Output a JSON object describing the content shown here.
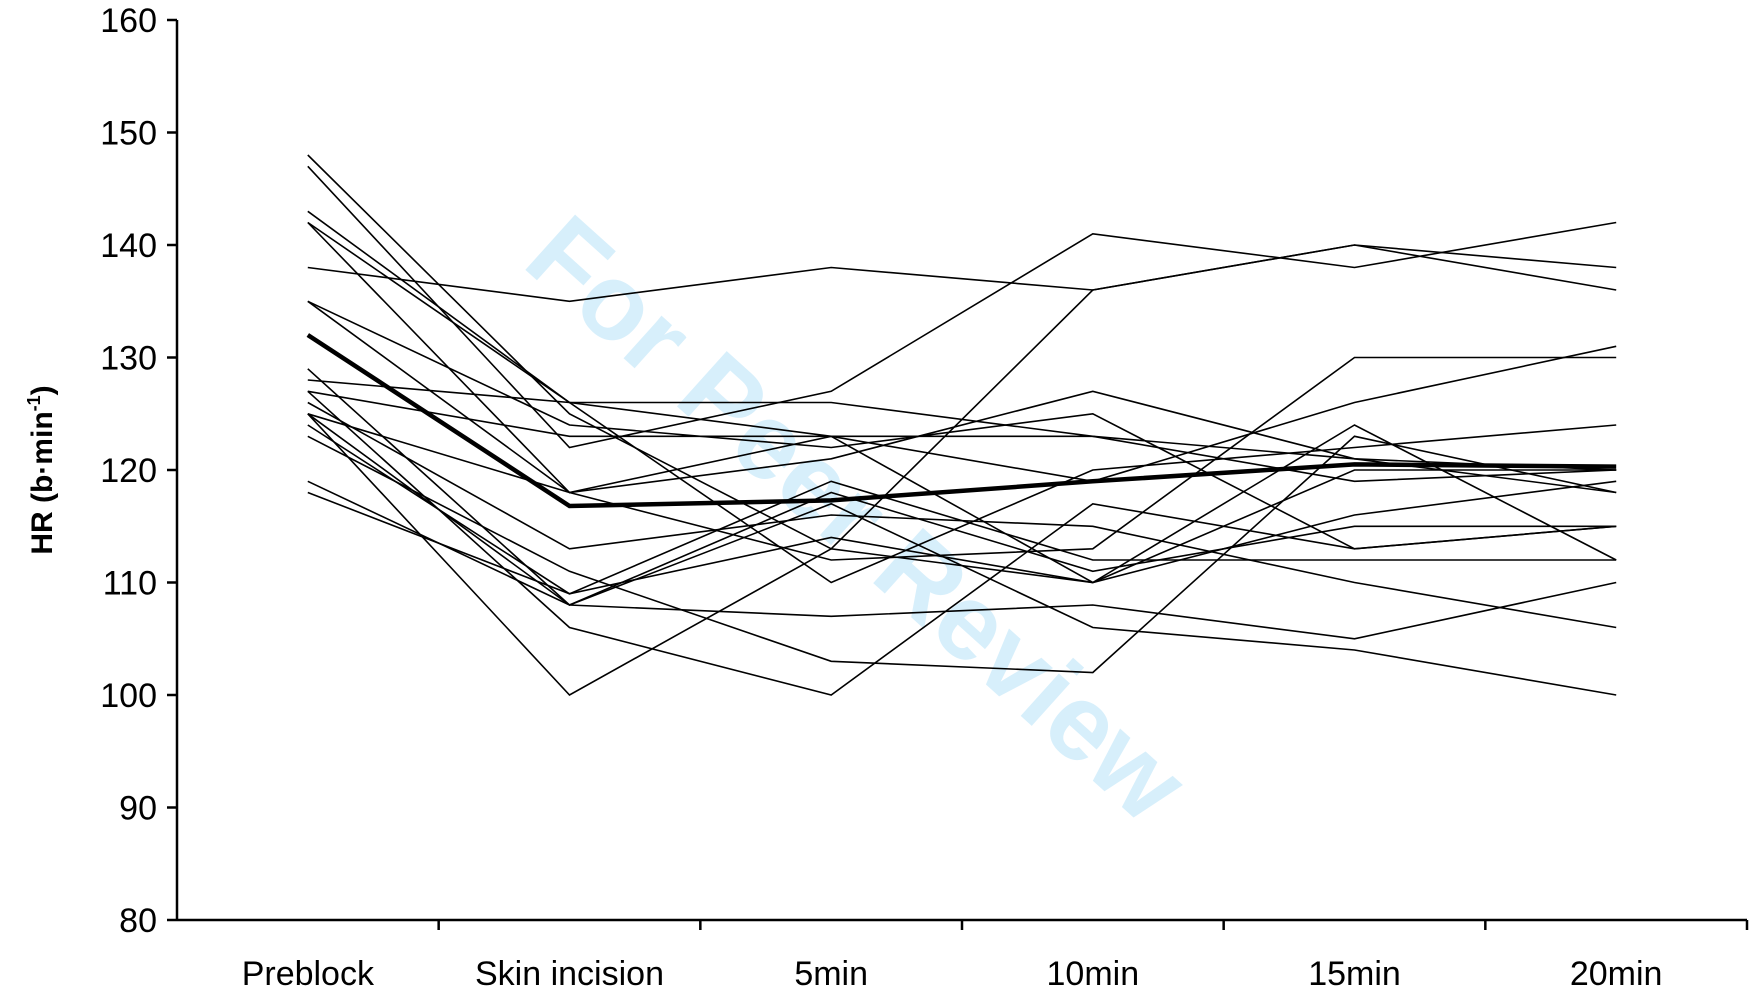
{
  "watermark": "For Peer Review",
  "chart_data": {
    "type": "line",
    "xlabel": "",
    "ylabel": "HR (b·min-1)",
    "ylabel_parts": {
      "main": "HR (b",
      "dot": "·",
      "unit": "min",
      "sup": "-1",
      "close": ")"
    },
    "categories": [
      "Preblock",
      "Skin incision",
      "5min",
      "10min",
      "15min",
      "20min"
    ],
    "ylim": [
      80,
      160
    ],
    "yticks": [
      "80",
      "90",
      "100",
      "110",
      "120",
      "130",
      "140",
      "150",
      "160"
    ],
    "grid": false,
    "legend": "none",
    "series": [
      {
        "values": [
          138,
          135,
          138,
          136,
          140,
          138
        ]
      },
      {
        "values": [
          148,
          125,
          113,
          136,
          140,
          136
        ]
      },
      {
        "values": [
          147,
          122,
          127,
          141,
          138,
          142
        ]
      },
      {
        "values": [
          143,
          126,
          126,
          123,
          121,
          120
        ]
      },
      {
        "values": [
          142,
          126,
          123,
          123,
          119,
          120
        ]
      },
      {
        "values": [
          142,
          118,
          123,
          110,
          124,
          112
        ]
      },
      {
        "values": [
          135,
          124,
          122,
          125,
          113,
          115
        ]
      },
      {
        "values": [
          135,
          118,
          121,
          127,
          121,
          118
        ]
      },
      {
        "values": [
          128,
          126,
          110,
          120,
          122,
          124
        ]
      },
      {
        "values": [
          127,
          123,
          123,
          119,
          126,
          131
        ]
      },
      {
        "values": [
          126,
          113,
          116,
          115,
          110,
          106
        ]
      },
      {
        "values": [
          125,
          118,
          112,
          113,
          130,
          130
        ]
      },
      {
        "values": [
          125,
          108,
          118,
          111,
          115,
          115
        ]
      },
      {
        "values": [
          124,
          109,
          119,
          112,
          112,
          112
        ]
      },
      {
        "values": [
          123,
          111,
          103,
          102,
          123,
          118
        ]
      },
      {
        "values": [
          129,
          108,
          107,
          108,
          105,
          110
        ]
      },
      {
        "values": [
          119,
          108,
          117,
          106,
          104,
          100
        ]
      },
      {
        "values": [
          118,
          109,
          114,
          110,
          116,
          119
        ]
      },
      {
        "values": [
          125,
          100,
          113,
          110,
          120,
          120
        ]
      },
      {
        "values": [
          127,
          106,
          100,
          117,
          113,
          115
        ]
      },
      {
        "name": "Mean",
        "values": [
          132,
          116.8,
          117.3,
          119,
          120.5,
          120.3
        ]
      }
    ]
  }
}
